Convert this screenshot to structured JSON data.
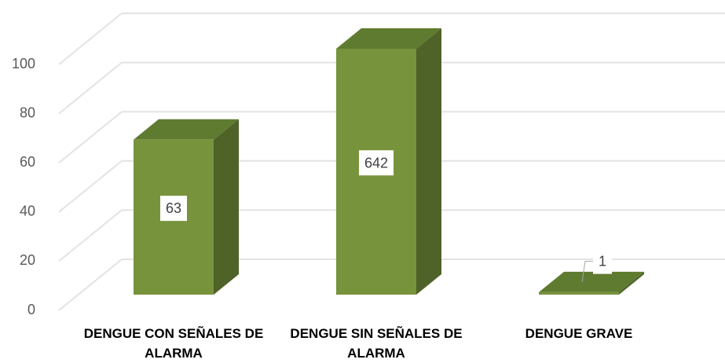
{
  "chart_data": {
    "type": "bar3d",
    "categories": [
      "DENGUE CON SEÑALES DE ALARMA",
      "DENGUE SIN SEÑALES DE ALARMA",
      "DENGUE GRAVE"
    ],
    "values": [
      63,
      642,
      1
    ],
    "colors": {
      "front": "#77933c",
      "side": "#4f6228",
      "top": "#5f7b30"
    },
    "ylim": [
      0,
      100
    ],
    "yticks": [
      0,
      20,
      40,
      60,
      80,
      100
    ],
    "grid": true
  }
}
